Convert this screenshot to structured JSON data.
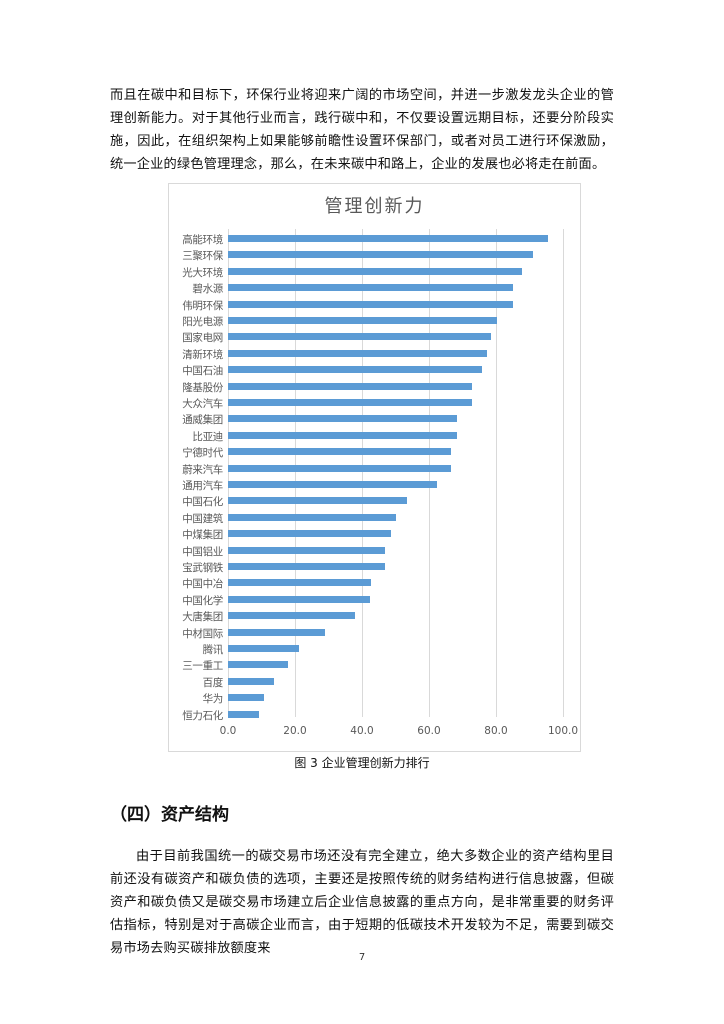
{
  "document": {
    "paragraph_1": "而且在碳中和目标下，环保行业将迎来广阔的市场空间，并进一步激发龙头企业的管理创新能力。对于其他行业而言，践行碳中和，不仅要设置远期目标，还要分阶段实施，因此，在组织架构上如果能够前瞻性设置环保部门，或者对员工进行环保激励，统一企业的绿色管理理念，那么，在未来碳中和路上，企业的发展也必将走在前面。",
    "figure_caption": "图 3  企业管理创新力排行",
    "section_heading": "（四）资产结构",
    "paragraph_2": "由于目前我国统一的碳交易市场还没有完全建立，绝大多数企业的资产结构里目前还没有碳资产和碳负债的选项，主要还是按照传统的财务结构进行信息披露，但碳资产和碳负债又是碳交易市场建立后企业信息披露的重点方向，是非常重要的财务评估指标，特别是对于高碳企业而言，由于短期的低碳技术开发较为不足，需要到碳交易市场去购买碳排放额度来",
    "page_number": "7"
  },
  "colors": {
    "bar": "#5b9bd5",
    "gridline": "#d9d9d9",
    "axis_text": "#595959"
  },
  "chart_data": {
    "type": "bar",
    "orientation": "horizontal",
    "title": "管理创新力",
    "xlabel": "",
    "ylabel": "",
    "xlim": [
      0,
      100
    ],
    "x_ticks": [
      "0.0",
      "20.0",
      "40.0",
      "60.0",
      "80.0",
      "100.0"
    ],
    "grid": true,
    "legend": null,
    "categories": [
      "高能环境",
      "三聚环保",
      "光大环境",
      "碧水源",
      "伟明环保",
      "阳光电源",
      "国家电网",
      "清新环境",
      "中国石油",
      "隆基股份",
      "大众汽车",
      "通威集团",
      "比亚迪",
      "宁德时代",
      "蔚来汽车",
      "通用汽车",
      "中国石化",
      "中国建筑",
      "中煤集团",
      "中国铝业",
      "宝武钢铁",
      "中国中冶",
      "中国化学",
      "大唐集团",
      "中材国际",
      "腾讯",
      "三一重工",
      "百度",
      "华为",
      "恒力石化"
    ],
    "values": [
      95.5,
      91.0,
      87.9,
      85.0,
      85.0,
      80.4,
      78.5,
      77.3,
      75.8,
      72.8,
      72.8,
      68.5,
      68.4,
      66.6,
      66.6,
      62.3,
      53.3,
      50.0,
      48.7,
      47.0,
      47.0,
      42.7,
      42.4,
      37.9,
      29.0,
      21.2,
      18.0,
      13.7,
      10.6,
      9.3
    ]
  }
}
